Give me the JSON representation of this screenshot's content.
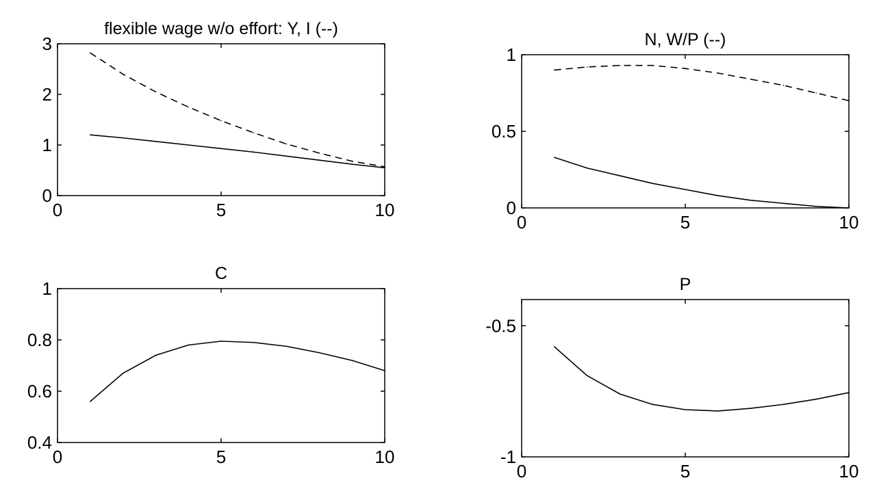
{
  "chart_data": [
    {
      "type": "line",
      "title": "flexible wage w/o effort: Y, I (--)",
      "xlabel": "",
      "ylabel": "",
      "xlim": [
        0,
        10
      ],
      "ylim": [
        0,
        3
      ],
      "xticks": [
        "0",
        "5",
        "10"
      ],
      "yticks": [
        "0",
        "1",
        "2",
        "3"
      ],
      "x": [
        1,
        2,
        3,
        4,
        5,
        6,
        7,
        8,
        9,
        10
      ],
      "series": [
        {
          "style": "solid",
          "values": [
            1.2,
            1.14,
            1.07,
            1.0,
            0.93,
            0.86,
            0.78,
            0.7,
            0.62,
            0.55
          ]
        },
        {
          "style": "dashed",
          "values": [
            2.82,
            2.4,
            2.05,
            1.75,
            1.48,
            1.24,
            1.02,
            0.84,
            0.68,
            0.57
          ]
        }
      ]
    },
    {
      "type": "line",
      "title": "N, W/P (--)",
      "xlabel": "",
      "ylabel": "",
      "xlim": [
        0,
        10
      ],
      "ylim": [
        0,
        1
      ],
      "xticks": [
        "0",
        "5",
        "10"
      ],
      "yticks": [
        "0",
        "0.5",
        "1"
      ],
      "x": [
        1,
        2,
        3,
        4,
        5,
        6,
        7,
        8,
        9,
        10
      ],
      "series": [
        {
          "style": "solid",
          "values": [
            0.33,
            0.26,
            0.21,
            0.16,
            0.12,
            0.08,
            0.05,
            0.03,
            0.01,
            0.0
          ]
        },
        {
          "style": "dashed",
          "values": [
            0.9,
            0.92,
            0.93,
            0.93,
            0.91,
            0.88,
            0.84,
            0.8,
            0.75,
            0.7
          ]
        }
      ]
    },
    {
      "type": "line",
      "title": "C",
      "xlabel": "",
      "ylabel": "",
      "xlim": [
        0,
        10
      ],
      "ylim": [
        0.4,
        1
      ],
      "xticks": [
        "0",
        "5",
        "10"
      ],
      "yticks": [
        "0.4",
        "0.6",
        "0.8",
        "1"
      ],
      "x": [
        1,
        2,
        3,
        4,
        5,
        6,
        7,
        8,
        9,
        10
      ],
      "series": [
        {
          "style": "solid",
          "values": [
            0.56,
            0.67,
            0.74,
            0.78,
            0.795,
            0.79,
            0.775,
            0.75,
            0.72,
            0.68
          ]
        }
      ]
    },
    {
      "type": "line",
      "title": "P",
      "xlabel": "",
      "ylabel": "",
      "xlim": [
        0,
        10
      ],
      "ylim": [
        -1,
        -0.4
      ],
      "xticks": [
        "0",
        "5",
        "10"
      ],
      "yticks": [
        "-1",
        "-0.5"
      ],
      "x": [
        1,
        2,
        3,
        4,
        5,
        6,
        7,
        8,
        9,
        10
      ],
      "series": [
        {
          "style": "solid",
          "values": [
            -0.58,
            -0.69,
            -0.76,
            -0.8,
            -0.82,
            -0.825,
            -0.815,
            -0.8,
            -0.78,
            -0.755
          ]
        }
      ]
    }
  ]
}
